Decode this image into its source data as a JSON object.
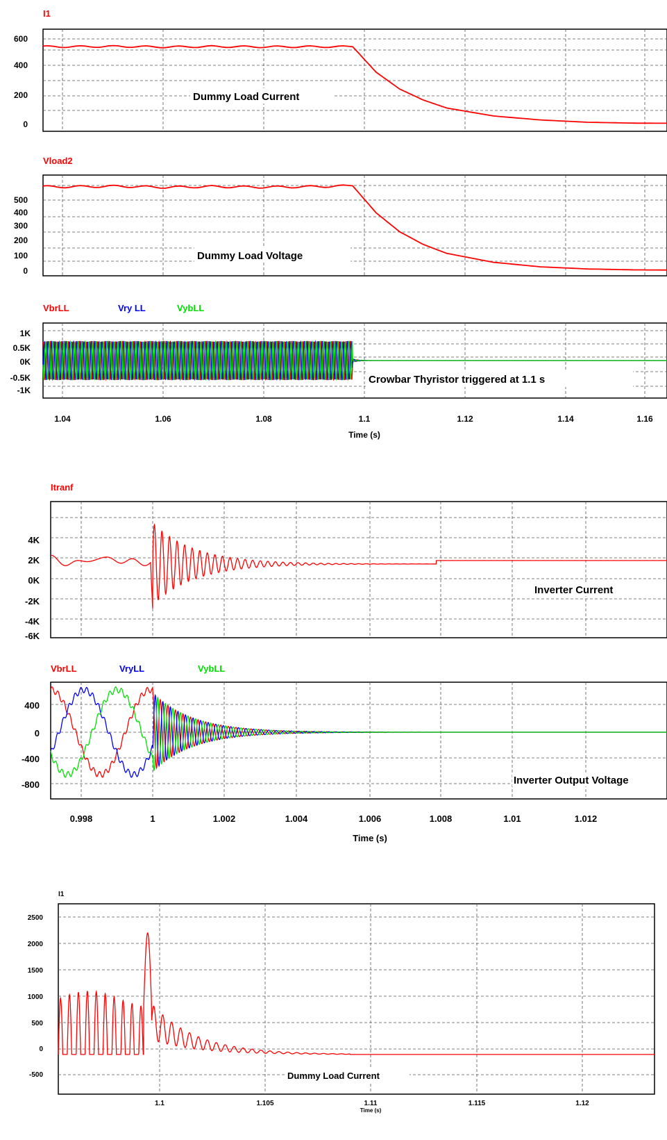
{
  "colors": {
    "red": "#ff0000",
    "blue": "#0000ff",
    "green": "#00e000"
  },
  "chart_data": [
    {
      "type": "line",
      "series": [
        {
          "name": "I1",
          "color": "#ff0000"
        }
      ],
      "annotation": "Dummy Load Current",
      "x": [
        1.034,
        1.04,
        1.05,
        1.06,
        1.07,
        1.08,
        1.09,
        1.1,
        1.105,
        1.11,
        1.115,
        1.12,
        1.13,
        1.14,
        1.15,
        1.16,
        1.167
      ],
      "y": [
        530,
        530,
        532,
        528,
        531,
        529,
        530,
        530,
        355,
        240,
        165,
        110,
        55,
        28,
        12,
        6,
        5
      ],
      "xlim": [
        1.034,
        1.167
      ],
      "ylim": [
        -50,
        650
      ],
      "yticks": [
        "0",
        "200",
        "400",
        "600"
      ],
      "xlabel": ""
    },
    {
      "type": "line",
      "series": [
        {
          "name": "Vload2",
          "color": "#ff0000"
        }
      ],
      "annotation": "Dummy Load Voltage",
      "x": [
        1.034,
        1.04,
        1.05,
        1.06,
        1.07,
        1.08,
        1.09,
        1.1,
        1.105,
        1.11,
        1.115,
        1.12,
        1.13,
        1.14,
        1.15,
        1.16,
        1.167
      ],
      "y": [
        465,
        465,
        468,
        462,
        466,
        463,
        465,
        470,
        320,
        215,
        145,
        95,
        45,
        20,
        8,
        3,
        2
      ],
      "xlim": [
        1.034,
        1.167
      ],
      "ylim": [
        -30,
        530
      ],
      "yticks": [
        "0",
        "100",
        "200",
        "300",
        "400",
        "500"
      ],
      "xlabel": ""
    },
    {
      "type": "line",
      "series": [
        {
          "name": "VbrLL",
          "color": "#ff0000"
        },
        {
          "name": "Vry LL",
          "color": "#0000ff"
        },
        {
          "name": "VybLL",
          "color": "#00e000"
        }
      ],
      "annotation": "Crowbar Thyristor triggered at 1.1 s",
      "amplitude_kV": 0.6,
      "collapse_x": 1.1,
      "xlim": [
        1.034,
        1.167
      ],
      "ylim": [
        -1.15,
        1.15
      ],
      "yticks": [
        "-1K",
        "-0.5K",
        "0K",
        "0.5K",
        "1K"
      ],
      "xticks": [
        "1.04",
        "1.06",
        "1.08",
        "1.1",
        "1.12",
        "1.14",
        "1.16"
      ],
      "xlabel": "Time (s)"
    },
    {
      "type": "line",
      "series": [
        {
          "name": "Itranf",
          "color": "#ff0000"
        }
      ],
      "annotation": "Inverter Current",
      "peak_positive_kA": 3.3,
      "peak_negative_kA": -4.5,
      "event_x": 1.0,
      "xlim": [
        0.9973,
        1.0136
      ],
      "ylim": [
        -6.8,
        5.2
      ],
      "yticks": [
        "-6K",
        "-4K",
        "-2K",
        "0K",
        "2K",
        "4K"
      ],
      "xlabel": ""
    },
    {
      "type": "line",
      "series": [
        {
          "name": "VbrLL",
          "color": "#ff0000"
        },
        {
          "name": "VryLL",
          "color": "#0000ff"
        },
        {
          "name": "VybLL",
          "color": "#00e000"
        }
      ],
      "annotation": "Inverter Output Voltage",
      "amplitude_V": 560,
      "event_x": 1.0,
      "xlim": [
        0.9973,
        1.0136
      ],
      "ylim": [
        -880,
        660
      ],
      "yticks": [
        "-800",
        "-400",
        "0",
        "400"
      ],
      "xticks": [
        "0.998",
        "1",
        "1.002",
        "1.004",
        "1.006",
        "1.008",
        "1.01",
        "1.012"
      ],
      "xlabel": "Time (s)"
    },
    {
      "type": "line",
      "series": [
        {
          "name": "I1",
          "color": "#ff0000"
        }
      ],
      "annotation": "Dummy Load Current",
      "peak": 2300,
      "event_x": 1.1,
      "xlim": [
        1.0959,
        1.1237
      ],
      "ylim": [
        -750,
        2850
      ],
      "yticks": [
        "-500",
        "0",
        "500",
        "1000",
        "1500",
        "2000",
        "2500"
      ],
      "xticks": [
        "1.1",
        "1.105",
        "1.11",
        "1.115",
        "1.12"
      ],
      "xlabel": "Time (s)"
    }
  ]
}
